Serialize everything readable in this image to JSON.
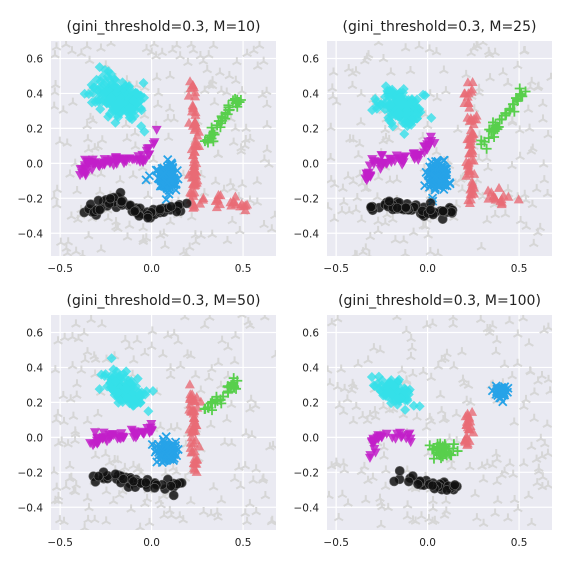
{
  "chart_data": [
    {
      "type": "scatter",
      "title": "(gini_threshold=0.3, M=10)",
      "xlim": [
        -0.55,
        0.68
      ],
      "ylim": [
        -0.53,
        0.7
      ],
      "xticks": [
        -0.5,
        0.0,
        0.5
      ],
      "yticks": [
        0.6,
        0.4,
        0.2,
        0.0,
        -0.2,
        -0.4
      ],
      "xticklabels": [
        "−0.5",
        "0.0",
        "0.5"
      ],
      "yticklabels": [
        "0.6",
        "0.4",
        "0.2",
        "0.0",
        "−0.2",
        "−0.4"
      ],
      "grid": true,
      "background": "#eaeaf2",
      "clusters": [
        {
          "color": "#34e0e8",
          "marker": "diamond",
          "shape": "blob",
          "center": [
            -0.18,
            0.37
          ],
          "spread": [
            0.1,
            0.14
          ],
          "angle": 55,
          "count": 180
        },
        {
          "color": "#c21ec9",
          "marker": "triangle-down",
          "shape": "curve",
          "path": [
            [
              -0.38,
              -0.07
            ],
            [
              -0.35,
              0.0
            ],
            [
              -0.2,
              0.01
            ],
            [
              -0.05,
              0.03
            ],
            [
              0.02,
              0.14
            ]
          ],
          "count": 70
        },
        {
          "color": "#27a3e8",
          "marker": "x",
          "shape": "blob",
          "center": [
            0.08,
            -0.09
          ],
          "spread": [
            0.05,
            0.07
          ],
          "angle": 0,
          "count": 130
        },
        {
          "color": "#e86c76",
          "marker": "triangle",
          "shape": "curve",
          "path": [
            [
              0.22,
              0.45
            ],
            [
              0.24,
              0.2
            ],
            [
              0.23,
              0.0
            ],
            [
              0.23,
              -0.25
            ],
            [
              0.28,
              -0.2
            ],
            [
              0.42,
              -0.22
            ],
            [
              0.55,
              -0.25
            ]
          ],
          "count": 95
        },
        {
          "color": "#58cf4c",
          "marker": "plus",
          "shape": "curve",
          "path": [
            [
              0.3,
              0.1
            ],
            [
              0.38,
              0.25
            ],
            [
              0.48,
              0.38
            ]
          ],
          "count": 35
        },
        {
          "color": "#111111",
          "marker": "circle",
          "shape": "curve",
          "path": [
            [
              -0.36,
              -0.28
            ],
            [
              -0.2,
              -0.2
            ],
            [
              -0.05,
              -0.3
            ],
            [
              0.1,
              -0.26
            ],
            [
              0.18,
              -0.25
            ]
          ],
          "count": 65
        }
      ]
    },
    {
      "type": "scatter",
      "title": "(gini_threshold=0.3, M=25)",
      "xlim": [
        -0.55,
        0.68
      ],
      "ylim": [
        -0.53,
        0.7
      ],
      "xticks": [
        -0.5,
        0.0,
        0.5
      ],
      "yticks": [
        0.6,
        0.4,
        0.2,
        0.0,
        -0.2,
        -0.4
      ],
      "xticklabels": [
        "−0.5",
        "0.0",
        "0.5"
      ],
      "yticklabels": [
        "0.6",
        "0.4",
        "0.2",
        "0.0",
        "−0.2",
        "−0.4"
      ],
      "grid": true,
      "background": "#eaeaf2",
      "clusters": [
        {
          "color": "#34e0e8",
          "marker": "diamond",
          "shape": "blob",
          "center": [
            -0.15,
            0.32
          ],
          "spread": [
            0.08,
            0.12
          ],
          "angle": 55,
          "count": 150
        },
        {
          "color": "#c21ec9",
          "marker": "triangle-down",
          "shape": "curve",
          "path": [
            [
              -0.33,
              -0.1
            ],
            [
              -0.3,
              0.0
            ],
            [
              -0.18,
              0.02
            ],
            [
              -0.05,
              0.04
            ],
            [
              0.02,
              0.14
            ]
          ],
          "count": 60
        },
        {
          "color": "#27a3e8",
          "marker": "x",
          "shape": "blob",
          "center": [
            0.06,
            -0.07
          ],
          "spread": [
            0.05,
            0.07
          ],
          "angle": 0,
          "count": 120
        },
        {
          "color": "#e86c76",
          "marker": "triangle",
          "shape": "curve",
          "path": [
            [
              0.22,
              0.45
            ],
            [
              0.24,
              0.2
            ],
            [
              0.23,
              0.0
            ],
            [
              0.23,
              -0.2
            ],
            [
              0.35,
              -0.2
            ],
            [
              0.5,
              -0.2
            ]
          ],
          "count": 80
        },
        {
          "color": "#58cf4c",
          "marker": "plus",
          "shape": "curve",
          "path": [
            [
              0.3,
              0.1
            ],
            [
              0.42,
              0.27
            ],
            [
              0.52,
              0.42
            ]
          ],
          "count": 35
        },
        {
          "color": "#111111",
          "marker": "circle",
          "shape": "curve",
          "path": [
            [
              -0.32,
              -0.26
            ],
            [
              -0.2,
              -0.24
            ],
            [
              -0.05,
              -0.26
            ],
            [
              0.1,
              -0.28
            ],
            [
              0.14,
              -0.25
            ]
          ],
          "count": 60
        }
      ]
    },
    {
      "type": "scatter",
      "title": "(gini_threshold=0.3, M=50)",
      "xlim": [
        -0.55,
        0.68
      ],
      "ylim": [
        -0.53,
        0.7
      ],
      "xticks": [
        -0.5,
        0.0,
        0.5
      ],
      "yticks": [
        0.6,
        0.4,
        0.2,
        0.0,
        -0.2,
        -0.4
      ],
      "xticklabels": [
        "−0.5",
        "0.0",
        "0.5"
      ],
      "yticklabels": [
        "0.6",
        "0.4",
        "0.2",
        "0.0",
        "−0.2",
        "−0.4"
      ],
      "grid": true,
      "background": "#eaeaf2",
      "clusters": [
        {
          "color": "#34e0e8",
          "marker": "diamond",
          "shape": "blob",
          "center": [
            -0.15,
            0.27
          ],
          "spread": [
            0.07,
            0.12
          ],
          "angle": 55,
          "count": 130
        },
        {
          "color": "#c21ec9",
          "marker": "triangle-down",
          "shape": "curve",
          "path": [
            [
              -0.32,
              -0.1
            ],
            [
              -0.3,
              0.0
            ],
            [
              -0.18,
              0.0
            ],
            [
              -0.05,
              0.02
            ],
            [
              0.0,
              0.05
            ]
          ],
          "count": 50
        },
        {
          "color": "#27a3e8",
          "marker": "x",
          "shape": "blob",
          "center": [
            0.08,
            -0.08
          ],
          "spread": [
            0.05,
            0.06
          ],
          "angle": 0,
          "count": 100
        },
        {
          "color": "#e86c76",
          "marker": "triangle",
          "shape": "curve",
          "path": [
            [
              0.22,
              0.28
            ],
            [
              0.23,
              0.15
            ],
            [
              0.23,
              -0.05
            ],
            [
              0.24,
              -0.2
            ]
          ],
          "count": 55
        },
        {
          "color": "#58cf4c",
          "marker": "plus",
          "shape": "curve",
          "path": [
            [
              0.3,
              0.15
            ],
            [
              0.38,
              0.23
            ],
            [
              0.46,
              0.32
            ]
          ],
          "count": 30
        },
        {
          "color": "#111111",
          "marker": "circle",
          "shape": "curve",
          "path": [
            [
              -0.32,
              -0.24
            ],
            [
              -0.2,
              -0.23
            ],
            [
              -0.05,
              -0.27
            ],
            [
              0.1,
              -0.28
            ],
            [
              0.15,
              -0.26
            ]
          ],
          "count": 45
        }
      ]
    },
    {
      "type": "scatter",
      "title": "(gini_threshold=0.3, M=100)",
      "xlim": [
        -0.55,
        0.68
      ],
      "ylim": [
        -0.53,
        0.7
      ],
      "xticks": [
        -0.5,
        0.0,
        0.5
      ],
      "yticks": [
        0.6,
        0.4,
        0.2,
        0.0,
        -0.2,
        -0.4
      ],
      "xticklabels": [
        "−0.5",
        "0.0",
        "0.5"
      ],
      "yticklabels": [
        "0.6",
        "0.4",
        "0.2",
        "0.0",
        "−0.2",
        "−0.4"
      ],
      "grid": true,
      "background": "#eaeaf2",
      "clusters": [
        {
          "color": "#34e0e8",
          "marker": "diamond",
          "shape": "blob",
          "center": [
            -0.18,
            0.26
          ],
          "spread": [
            0.06,
            0.1
          ],
          "angle": 55,
          "count": 80
        },
        {
          "color": "#c21ec9",
          "marker": "triangle-down",
          "shape": "curve",
          "path": [
            [
              -0.32,
              -0.1
            ],
            [
              -0.28,
              0.0
            ],
            [
              -0.18,
              0.01
            ],
            [
              -0.05,
              0.0
            ]
          ],
          "count": 30
        },
        {
          "color": "#27a3e8",
          "marker": "x",
          "shape": "blob",
          "center": [
            0.4,
            0.26
          ],
          "spread": [
            0.03,
            0.035
          ],
          "angle": 0,
          "count": 40
        },
        {
          "color": "#e86c76",
          "marker": "triangle",
          "shape": "curve",
          "path": [
            [
              0.22,
              0.15
            ],
            [
              0.23,
              0.05
            ],
            [
              0.2,
              -0.05
            ]
          ],
          "count": 25
        },
        {
          "color": "#58cf4c",
          "marker": "plus",
          "shape": "blob",
          "center": [
            0.08,
            -0.08
          ],
          "spread": [
            0.06,
            0.04
          ],
          "angle": 0,
          "count": 40
        },
        {
          "color": "#111111",
          "marker": "circle",
          "shape": "curve",
          "path": [
            [
              -0.2,
              -0.22
            ],
            [
              -0.05,
              -0.25
            ],
            [
              0.1,
              -0.28
            ],
            [
              0.15,
              -0.28
            ]
          ],
          "count": 30
        }
      ]
    }
  ],
  "background_points": {
    "color": "#d6d6d6",
    "marker": "tripod",
    "count": 190
  }
}
